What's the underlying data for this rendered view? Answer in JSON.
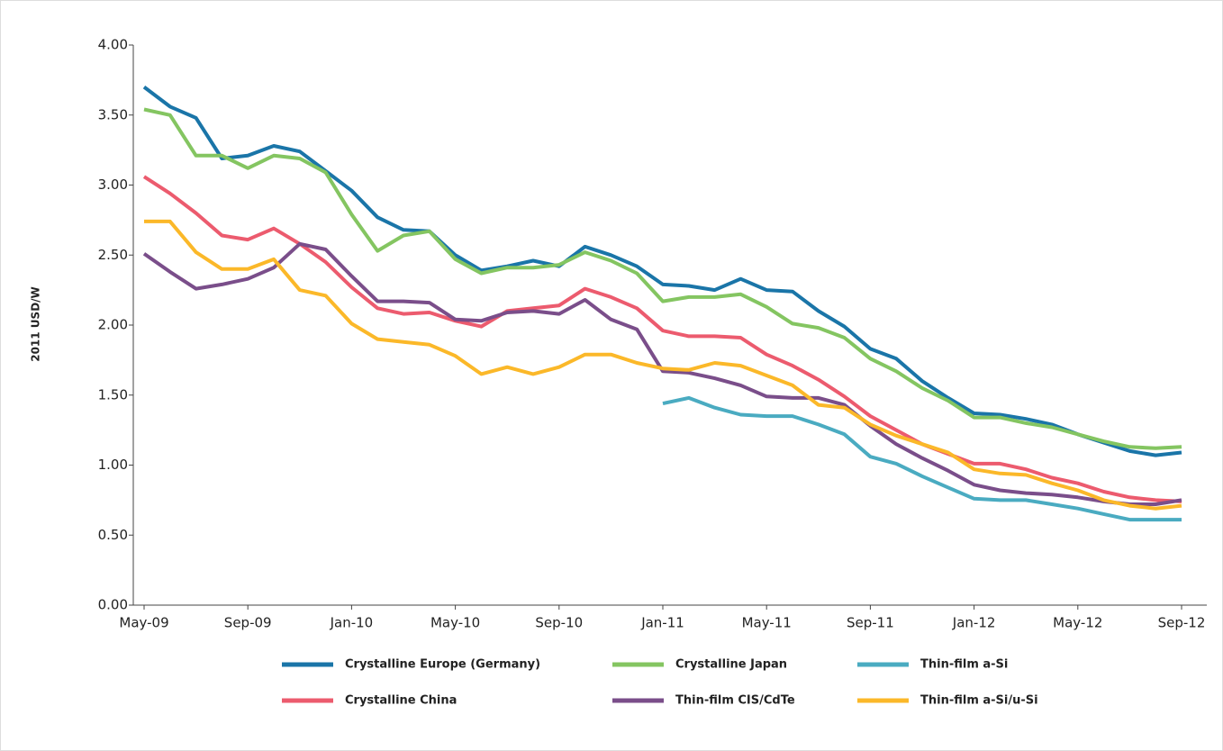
{
  "chart_data": {
    "type": "line",
    "ylabel": "2011 USD/W",
    "categories": [
      "May-09",
      null,
      null,
      null,
      "Sep-09",
      null,
      null,
      null,
      "Jan-10",
      null,
      null,
      null,
      "May-10",
      null,
      null,
      null,
      "Sep-10",
      null,
      null,
      null,
      "Jan-11",
      null,
      null,
      null,
      "May-11",
      null,
      null,
      null,
      "Sep-11",
      null,
      null,
      null,
      "Jan-12",
      null,
      null,
      null,
      "May-12",
      null,
      null,
      null,
      "Sep-12"
    ],
    "ylim": [
      0,
      4
    ],
    "yticks": [
      {
        "value": 0,
        "label": "0.00"
      },
      {
        "value": 0.5,
        "label": "0.50"
      },
      {
        "value": 1,
        "label": "1.00"
      },
      {
        "value": 1.5,
        "label": "1.50"
      },
      {
        "value": 2,
        "label": "2.00"
      },
      {
        "value": 2.5,
        "label": "2.50"
      },
      {
        "value": 3,
        "label": "3.00"
      },
      {
        "value": 3.5,
        "label": "3.50"
      },
      {
        "value": 4,
        "label": "4.00"
      }
    ],
    "grid": false,
    "legend": "bottom",
    "series": [
      {
        "name": "Crystalline Europe (Germany)",
        "color": "#1a75a8",
        "values": [
          3.7,
          3.56,
          3.48,
          3.19,
          3.21,
          3.28,
          3.24,
          3.1,
          2.96,
          2.77,
          2.68,
          2.67,
          2.5,
          2.39,
          2.42,
          2.46,
          2.42,
          2.56,
          2.5,
          2.42,
          2.29,
          2.28,
          2.25,
          2.33,
          2.25,
          2.24,
          2.1,
          1.99,
          1.83,
          1.76,
          1.6,
          1.48,
          1.37,
          1.36,
          1.33,
          1.29,
          1.22,
          1.16,
          1.1,
          1.07,
          1.09
        ]
      },
      {
        "name": "Crystalline Japan",
        "color": "#84c561",
        "values": [
          3.54,
          3.5,
          3.21,
          3.21,
          3.12,
          3.21,
          3.19,
          3.09,
          2.79,
          2.53,
          2.64,
          2.67,
          2.47,
          2.37,
          2.41,
          2.41,
          2.43,
          2.52,
          2.46,
          2.37,
          2.17,
          2.2,
          2.2,
          2.22,
          2.13,
          2.01,
          1.98,
          1.91,
          1.76,
          1.67,
          1.55,
          1.46,
          1.34,
          1.34,
          1.3,
          1.27,
          1.22,
          1.17,
          1.13,
          1.12,
          1.13
        ]
      },
      {
        "name": "Thin-film a-Si",
        "color": "#4aabc1",
        "values": [
          null,
          null,
          null,
          null,
          null,
          null,
          null,
          null,
          null,
          null,
          null,
          null,
          null,
          null,
          null,
          null,
          null,
          null,
          null,
          null,
          1.44,
          1.48,
          1.41,
          1.36,
          1.35,
          1.35,
          1.29,
          1.22,
          1.06,
          1.01,
          0.92,
          0.84,
          0.76,
          0.75,
          0.75,
          0.72,
          0.69,
          0.65,
          0.61,
          0.61,
          0.61
        ]
      },
      {
        "name": "Crystalline China",
        "color": "#ec5b6e",
        "values": [
          3.06,
          2.94,
          2.8,
          2.64,
          2.61,
          2.69,
          2.58,
          2.45,
          2.27,
          2.12,
          2.08,
          2.09,
          2.03,
          1.99,
          2.1,
          2.12,
          2.14,
          2.26,
          2.2,
          2.12,
          1.96,
          1.92,
          1.92,
          1.91,
          1.79,
          1.71,
          1.61,
          1.49,
          1.35,
          1.25,
          1.15,
          1.08,
          1.01,
          1.01,
          0.97,
          0.91,
          0.87,
          0.81,
          0.77,
          0.75,
          0.74
        ]
      },
      {
        "name": "Thin-film CIS/CdTe",
        "color": "#7a4e8a",
        "values": [
          2.51,
          2.38,
          2.26,
          2.29,
          2.33,
          2.41,
          2.58,
          2.54,
          2.35,
          2.17,
          2.17,
          2.16,
          2.04,
          2.03,
          2.09,
          2.1,
          2.08,
          2.18,
          2.04,
          1.97,
          1.67,
          1.66,
          1.62,
          1.57,
          1.49,
          1.48,
          1.48,
          1.43,
          1.28,
          1.15,
          1.05,
          0.96,
          0.86,
          0.82,
          0.8,
          0.79,
          0.77,
          0.74,
          0.72,
          0.72,
          0.75
        ]
      },
      {
        "name": "Thin-film a-Si/u-Si",
        "color": "#fbb829",
        "values": [
          2.74,
          2.74,
          2.52,
          2.4,
          2.4,
          2.47,
          2.25,
          2.21,
          2.01,
          1.9,
          1.88,
          1.86,
          1.78,
          1.65,
          1.7,
          1.65,
          1.7,
          1.79,
          1.79,
          1.73,
          1.69,
          1.68,
          1.73,
          1.71,
          1.64,
          1.57,
          1.43,
          1.41,
          1.29,
          1.21,
          1.15,
          1.09,
          0.97,
          0.94,
          0.93,
          0.87,
          0.82,
          0.75,
          0.71,
          0.69,
          0.71
        ]
      }
    ]
  }
}
